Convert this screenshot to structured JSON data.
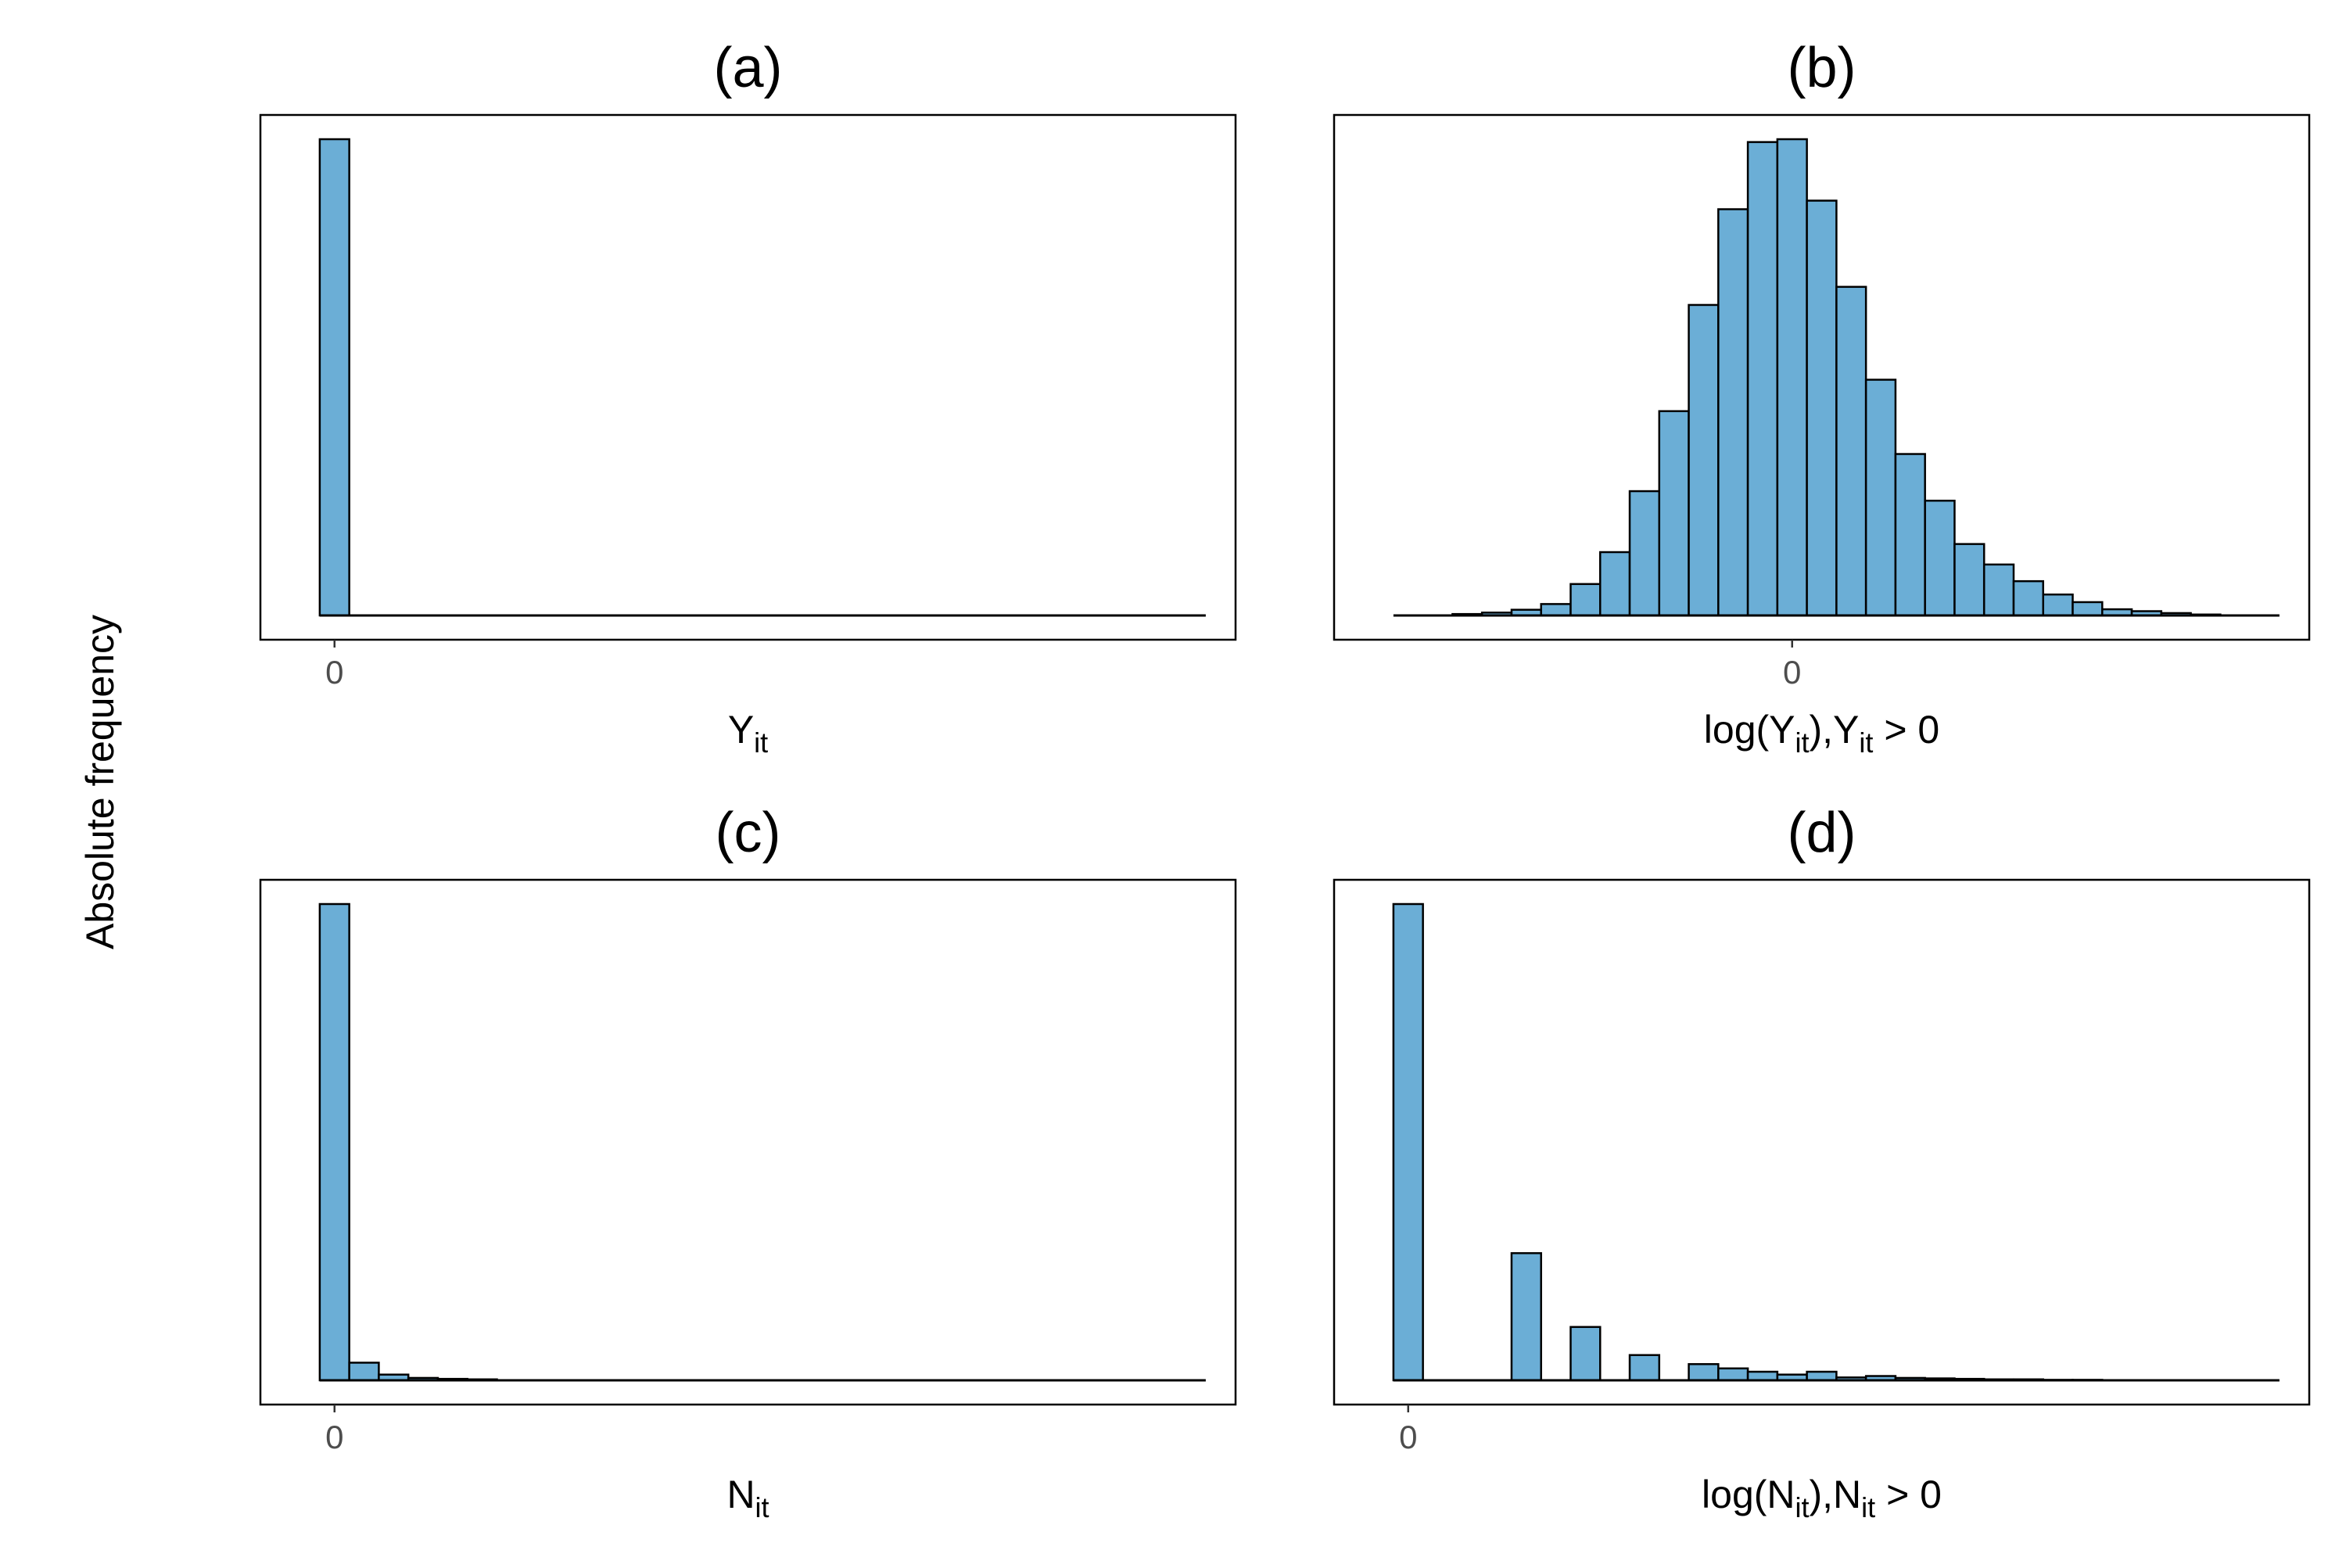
{
  "y_axis_label": "Absolute frequency",
  "chart_data": [
    {
      "type": "bar",
      "title": "(a)",
      "xlabel": {
        "base": "Y",
        "sub": "it",
        "suffix": ""
      },
      "x_tick_labels": [
        {
          "label": "0",
          "value": 0
        }
      ],
      "x_domain": [
        -1,
        29
      ],
      "ylim": [
        0,
        1
      ],
      "bar_width": 1,
      "bins": [
        {
          "x": 0,
          "value": 1.0
        },
        {
          "x": 1,
          "value": 0
        },
        {
          "x": 2,
          "value": 0
        },
        {
          "x": 3,
          "value": 0
        },
        {
          "x": 4,
          "value": 0
        },
        {
          "x": 5,
          "value": 0
        },
        {
          "x": 6,
          "value": 0
        },
        {
          "x": 7,
          "value": 0
        },
        {
          "x": 8,
          "value": 0
        },
        {
          "x": 9,
          "value": 0
        },
        {
          "x": 10,
          "value": 0
        },
        {
          "x": 11,
          "value": 0
        },
        {
          "x": 12,
          "value": 0
        },
        {
          "x": 13,
          "value": 0
        },
        {
          "x": 14,
          "value": 0
        },
        {
          "x": 15,
          "value": 0
        },
        {
          "x": 16,
          "value": 0
        },
        {
          "x": 17,
          "value": 0
        },
        {
          "x": 18,
          "value": 0
        },
        {
          "x": 19,
          "value": 0
        },
        {
          "x": 20,
          "value": 0
        },
        {
          "x": 21,
          "value": 0
        },
        {
          "x": 22,
          "value": 0
        },
        {
          "x": 23,
          "value": 0
        },
        {
          "x": 24,
          "value": 0
        },
        {
          "x": 25,
          "value": 0
        },
        {
          "x": 26,
          "value": 0
        },
        {
          "x": 27,
          "value": 0
        },
        {
          "x": 28,
          "value": 0
        },
        {
          "x": 29,
          "value": 0
        }
      ],
      "grid": false
    },
    {
      "type": "bar",
      "title": "(b)",
      "xlabel": {
        "base": "log(Y",
        "sub": "it",
        "suffix": "),Y",
        "sub2": "it",
        "suffix2": " > 0"
      },
      "x_tick_labels": [
        {
          "label": "0",
          "value": 0
        }
      ],
      "x_domain": [
        -14,
        16
      ],
      "ylim": [
        0,
        1
      ],
      "bar_width": 1,
      "bins": [
        {
          "x": -13,
          "value": 0.0
        },
        {
          "x": -12,
          "value": 0.0
        },
        {
          "x": -11,
          "value": 0.003
        },
        {
          "x": -10,
          "value": 0.006
        },
        {
          "x": -9,
          "value": 0.012
        },
        {
          "x": -8,
          "value": 0.024
        },
        {
          "x": -7,
          "value": 0.066
        },
        {
          "x": -6,
          "value": 0.133
        },
        {
          "x": -5,
          "value": 0.261
        },
        {
          "x": -4,
          "value": 0.429
        },
        {
          "x": -3,
          "value": 0.652
        },
        {
          "x": -2,
          "value": 0.853
        },
        {
          "x": -1,
          "value": 0.994
        },
        {
          "x": 0,
          "value": 1.0
        },
        {
          "x": 1,
          "value": 0.871
        },
        {
          "x": 2,
          "value": 0.69
        },
        {
          "x": 3,
          "value": 0.495
        },
        {
          "x": 4,
          "value": 0.339
        },
        {
          "x": 5,
          "value": 0.241
        },
        {
          "x": 6,
          "value": 0.15
        },
        {
          "x": 7,
          "value": 0.107
        },
        {
          "x": 8,
          "value": 0.072
        },
        {
          "x": 9,
          "value": 0.044
        },
        {
          "x": 10,
          "value": 0.028
        },
        {
          "x": 11,
          "value": 0.013
        },
        {
          "x": 12,
          "value": 0.009
        },
        {
          "x": 13,
          "value": 0.005
        },
        {
          "x": 14,
          "value": 0.002
        },
        {
          "x": 15,
          "value": 0.0
        },
        {
          "x": 16,
          "value": 0.0
        }
      ],
      "grid": false
    },
    {
      "type": "bar",
      "title": "(c)",
      "xlabel": {
        "base": "N",
        "sub": "it",
        "suffix": ""
      },
      "x_tick_labels": [
        {
          "label": "0",
          "value": 0
        }
      ],
      "x_domain": [
        -1,
        29
      ],
      "ylim": [
        0,
        1
      ],
      "bar_width": 1,
      "bins": [
        {
          "x": 0,
          "value": 1.0
        },
        {
          "x": 1,
          "value": 0.037
        },
        {
          "x": 2,
          "value": 0.012
        },
        {
          "x": 3,
          "value": 0.005
        },
        {
          "x": 4,
          "value": 0.003
        },
        {
          "x": 5,
          "value": 0.002
        },
        {
          "x": 6,
          "value": 0
        },
        {
          "x": 7,
          "value": 0
        },
        {
          "x": 8,
          "value": 0
        },
        {
          "x": 9,
          "value": 0
        },
        {
          "x": 10,
          "value": 0
        },
        {
          "x": 11,
          "value": 0
        },
        {
          "x": 12,
          "value": 0
        },
        {
          "x": 13,
          "value": 0
        },
        {
          "x": 14,
          "value": 0
        },
        {
          "x": 15,
          "value": 0
        },
        {
          "x": 16,
          "value": 0
        },
        {
          "x": 17,
          "value": 0
        },
        {
          "x": 18,
          "value": 0
        },
        {
          "x": 19,
          "value": 0
        },
        {
          "x": 20,
          "value": 0
        },
        {
          "x": 21,
          "value": 0
        },
        {
          "x": 22,
          "value": 0
        },
        {
          "x": 23,
          "value": 0
        },
        {
          "x": 24,
          "value": 0
        },
        {
          "x": 25,
          "value": 0
        },
        {
          "x": 26,
          "value": 0
        },
        {
          "x": 27,
          "value": 0
        },
        {
          "x": 28,
          "value": 0
        },
        {
          "x": 29,
          "value": 0
        }
      ],
      "grid": false
    },
    {
      "type": "bar",
      "title": "(d)",
      "xlabel": {
        "base": "log(N",
        "sub": "it",
        "suffix": "),N",
        "sub2": "it",
        "suffix2": " > 0"
      },
      "x_tick_labels": [
        {
          "label": "0",
          "value": 0
        }
      ],
      "x_domain": [
        -1,
        29
      ],
      "ylim": [
        0,
        1
      ],
      "bar_width": 1,
      "bins": [
        {
          "x": 0,
          "value": 1.0
        },
        {
          "x": 1,
          "value": 0
        },
        {
          "x": 2,
          "value": 0
        },
        {
          "x": 3,
          "value": 0
        },
        {
          "x": 4,
          "value": 0.267
        },
        {
          "x": 5,
          "value": 0
        },
        {
          "x": 6,
          "value": 0.112
        },
        {
          "x": 7,
          "value": 0
        },
        {
          "x": 8,
          "value": 0.053
        },
        {
          "x": 9,
          "value": 0
        },
        {
          "x": 10,
          "value": 0.034
        },
        {
          "x": 11,
          "value": 0.025
        },
        {
          "x": 12,
          "value": 0.018
        },
        {
          "x": 13,
          "value": 0.012
        },
        {
          "x": 14,
          "value": 0.018
        },
        {
          "x": 15,
          "value": 0.006
        },
        {
          "x": 16,
          "value": 0.009
        },
        {
          "x": 17,
          "value": 0.005
        },
        {
          "x": 18,
          "value": 0.004
        },
        {
          "x": 19,
          "value": 0.003
        },
        {
          "x": 20,
          "value": 0.002
        },
        {
          "x": 21,
          "value": 0.002
        },
        {
          "x": 22,
          "value": 0.001
        },
        {
          "x": 23,
          "value": 0.001
        },
        {
          "x": 24,
          "value": 0
        },
        {
          "x": 25,
          "value": 0
        },
        {
          "x": 26,
          "value": 0
        },
        {
          "x": 27,
          "value": 0
        },
        {
          "x": 28,
          "value": 0
        },
        {
          "x": 29,
          "value": 0
        }
      ],
      "grid": false
    }
  ],
  "colors": {
    "bar_fill": "#6baed6",
    "bar_stroke": "#000000",
    "panel_border": "#000000"
  }
}
